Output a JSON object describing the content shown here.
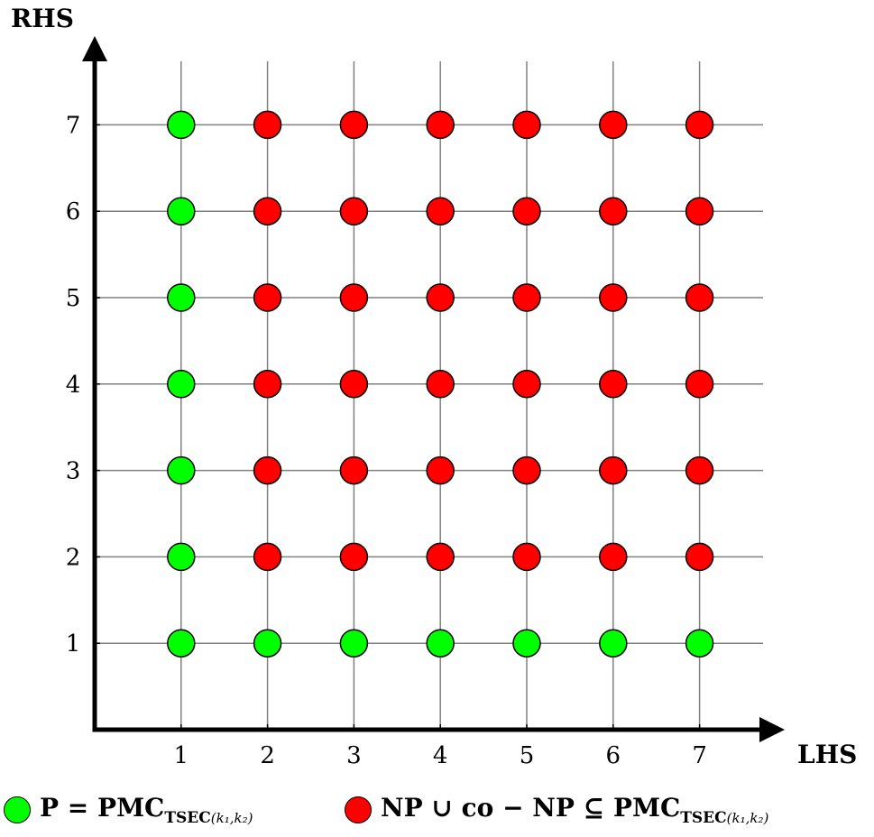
{
  "chart_data": {
    "type": "scatter",
    "xlabel": "LHS",
    "ylabel": "RHS",
    "x_ticks": [
      "1",
      "2",
      "3",
      "4",
      "5",
      "6",
      "7"
    ],
    "y_ticks": [
      "1",
      "2",
      "3",
      "4",
      "5",
      "6",
      "7"
    ],
    "xlim": [
      0,
      7.7
    ],
    "ylim": [
      0,
      7.7
    ],
    "grid": true,
    "colors": {
      "green": "#00ff00",
      "red": "#ff0000"
    },
    "series": [
      {
        "name": "P = PMC_TSEC(k1,k2)",
        "color": "green",
        "points": [
          [
            1,
            1
          ],
          [
            2,
            1
          ],
          [
            3,
            1
          ],
          [
            4,
            1
          ],
          [
            5,
            1
          ],
          [
            6,
            1
          ],
          [
            7,
            1
          ],
          [
            1,
            2
          ],
          [
            1,
            3
          ],
          [
            1,
            4
          ],
          [
            1,
            5
          ],
          [
            1,
            6
          ],
          [
            1,
            7
          ]
        ]
      },
      {
        "name": "NP ∪ co − NP ⊆ PMC_TSEC(k1,k2)",
        "color": "red",
        "points": [
          [
            2,
            2
          ],
          [
            3,
            2
          ],
          [
            4,
            2
          ],
          [
            5,
            2
          ],
          [
            6,
            2
          ],
          [
            7,
            2
          ],
          [
            2,
            3
          ],
          [
            3,
            3
          ],
          [
            4,
            3
          ],
          [
            5,
            3
          ],
          [
            6,
            3
          ],
          [
            7,
            3
          ],
          [
            2,
            4
          ],
          [
            3,
            4
          ],
          [
            4,
            4
          ],
          [
            5,
            4
          ],
          [
            6,
            4
          ],
          [
            7,
            4
          ],
          [
            2,
            5
          ],
          [
            3,
            5
          ],
          [
            4,
            5
          ],
          [
            5,
            5
          ],
          [
            6,
            5
          ],
          [
            7,
            5
          ],
          [
            2,
            6
          ],
          [
            3,
            6
          ],
          [
            4,
            6
          ],
          [
            5,
            6
          ],
          [
            6,
            6
          ],
          [
            7,
            6
          ],
          [
            2,
            7
          ],
          [
            3,
            7
          ],
          [
            4,
            7
          ],
          [
            5,
            7
          ],
          [
            6,
            7
          ],
          [
            7,
            7
          ]
        ]
      }
    ]
  },
  "legend": {
    "green_main": "P = PMC",
    "green_sub": "TSEC",
    "green_sub2": "(k₁,k₂)",
    "red_main": "NP ∪ co − NP ⊆ PMC",
    "red_sub": "TSEC",
    "red_sub2": "(k₁,k₂)"
  }
}
